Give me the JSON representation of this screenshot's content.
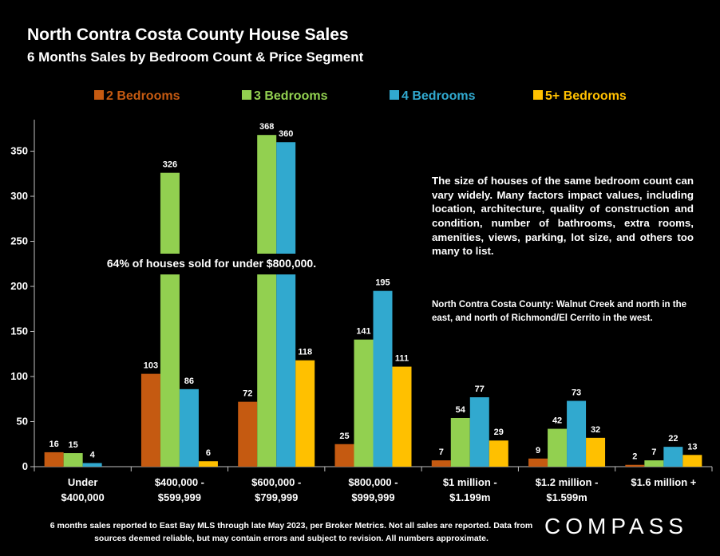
{
  "header": {
    "title": "North Contra Costa County House Sales",
    "subtitle": "6 Months Sales by Bedroom Count & Price Segment"
  },
  "annotations": {
    "main": "64% of houses sold for under $800,000.",
    "right": "The size of houses of the same bedroom count can vary widely. Many factors impact values, including  location, architecture, quality of construction and condition, number of bathrooms, extra rooms, amenities, views, parking, lot size, and others too many to list.",
    "right_small": "North Contra Costa County: Walnut Creek and north in the east, and north of Richmond/El Cerrito in the west."
  },
  "footer": {
    "note": "6 months sales reported to East Bay MLS through late May 2023, per Broker Metrics. Not all sales are reported. Data from sources deemed reliable, but may contain errors and subject to revision. All numbers approximate.",
    "logo": "COMPASS"
  },
  "chart_data": {
    "type": "bar",
    "title": "North Contra Costa County House Sales",
    "subtitle": "6 Months Sales by Bedroom Count & Price Segment",
    "categories": [
      [
        "Under",
        "$400,000"
      ],
      [
        "$400,000 -",
        "$599,999"
      ],
      [
        "$600,000 -",
        "$799,999"
      ],
      [
        "$800,000 -",
        "$999,999"
      ],
      [
        "$1 million -",
        "$1.199m"
      ],
      [
        "$1.2 million -",
        "$1.599m"
      ],
      [
        "$1.6 million +"
      ]
    ],
    "series": [
      {
        "name": "2 Bedrooms",
        "color": "#C55A11",
        "values": [
          16,
          103,
          72,
          25,
          7,
          9,
          2
        ]
      },
      {
        "name": "3 Bedrooms",
        "color": "#92D050",
        "values": [
          15,
          326,
          368,
          141,
          54,
          42,
          7
        ]
      },
      {
        "name": "4 Bedrooms",
        "color": "#31A9CF",
        "values": [
          4,
          86,
          360,
          195,
          77,
          73,
          22
        ]
      },
      {
        "name": "5+ Bedrooms",
        "color": "#FFC000",
        "values": [
          null,
          6,
          118,
          111,
          29,
          32,
          13
        ]
      }
    ],
    "yticks": [
      0,
      50,
      100,
      150,
      200,
      250,
      300,
      350
    ],
    "ylim": [
      0,
      385
    ],
    "grid": false,
    "legend": "top"
  }
}
